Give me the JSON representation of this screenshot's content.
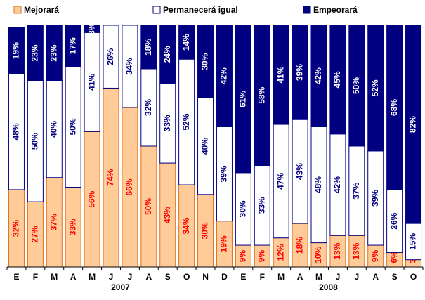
{
  "chart_data": {
    "type": "stacked_bar",
    "categories": [
      "E",
      "F",
      "M",
      "A",
      "M",
      "J",
      "J",
      "A",
      "S",
      "O",
      "N",
      "D",
      "E",
      "F",
      "M",
      "A",
      "M",
      "J",
      "J",
      "A",
      "S",
      "O"
    ],
    "groups": [
      {
        "label": "2007",
        "size": 12
      },
      {
        "label": "2008",
        "size": 10
      }
    ],
    "ylim": [
      0,
      100
    ],
    "series": [
      {
        "name": "Mejorará",
        "color": "#FFCC99",
        "stroke": "#E07020",
        "label_color": "#FF0000",
        "values": [
          32,
          27,
          37,
          33,
          56,
          74,
          66,
          50,
          43,
          34,
          30,
          19,
          9,
          9,
          12,
          18,
          10,
          13,
          13,
          9,
          6,
          3
        ],
        "value_labels": [
          "32%",
          "27%",
          "37%",
          "33%",
          "56%",
          "74%",
          "66%",
          "50%",
          "43%",
          "34%",
          "30%",
          "19%",
          "9%",
          "9%",
          "12%",
          "18%",
          "10%",
          "13%",
          "13%",
          "9%",
          "6%",
          "3%"
        ]
      },
      {
        "name": "Permanecerá igual",
        "color": "#FFFFFF",
        "stroke": "#000080",
        "label_color": "#000080",
        "values": [
          48,
          50,
          40,
          50,
          41,
          26,
          34,
          32,
          33,
          52,
          40,
          39,
          30,
          33,
          47,
          43,
          48,
          42,
          37,
          39,
          26,
          15
        ],
        "value_labels": [
          "48%",
          "50%",
          "40%",
          "50%",
          "41%",
          "26%",
          "34%",
          "32%",
          "33%",
          "52%",
          "40%",
          "39%",
          "30%",
          "33%",
          "47%",
          "43%",
          "48%",
          "42%",
          "37%",
          "39%",
          "26%",
          "15%"
        ]
      },
      {
        "name": "Empeorará",
        "color": "#000080",
        "stroke": "#000080",
        "label_color": "#FFFFFF",
        "values": [
          19,
          23,
          23,
          17,
          3,
          null,
          null,
          18,
          24,
          14,
          30,
          42,
          61,
          58,
          41,
          39,
          42,
          45,
          50,
          52,
          68,
          82
        ],
        "value_labels": [
          "19%",
          "23%",
          "23%",
          "17%",
          "3%",
          null,
          null,
          "18%",
          "24%",
          "14%",
          "30%",
          "42%",
          "61%",
          "58%",
          "41%",
          "39%",
          "42%",
          "45%",
          "50%",
          "52%",
          "68%",
          "82%"
        ]
      }
    ]
  }
}
